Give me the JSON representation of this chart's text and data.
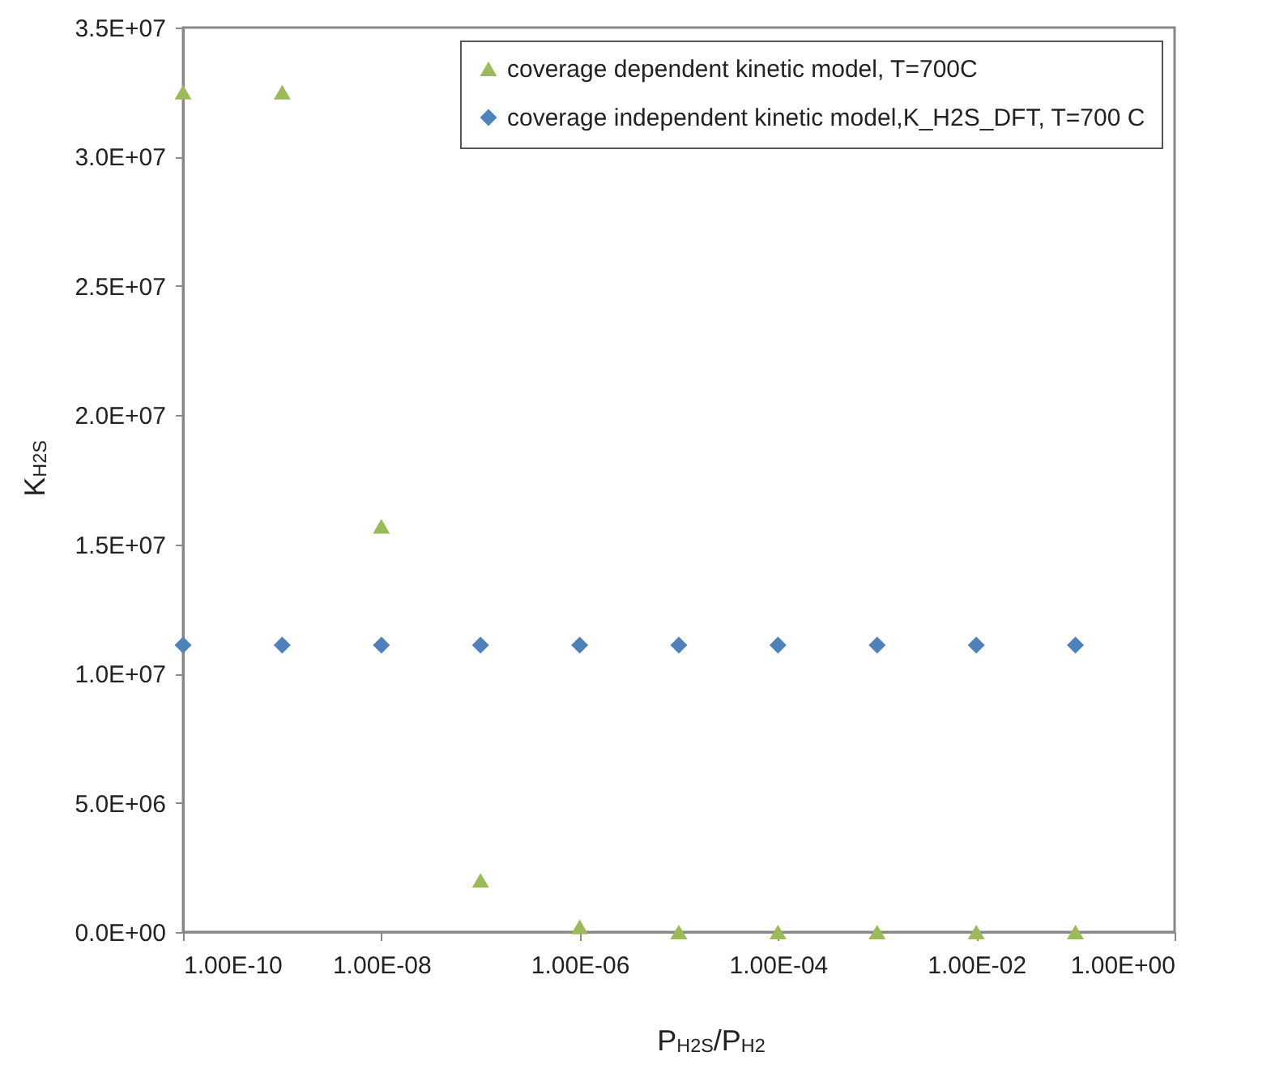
{
  "chart_data": {
    "type": "scatter",
    "xlabel": "P$_{H2S}$/P$_{H2}$",
    "ylabel": "K$_{H2S}$",
    "log": "x",
    "grid": false,
    "legend": "top right",
    "x": [
      1e-10,
      1e-09,
      1e-08,
      1e-07,
      1e-06,
      1e-05,
      0.0001,
      0.001,
      0.01,
      0.1
    ],
    "xlim": [
      1e-10,
      1
    ],
    "ylim": [
      0,
      35000000
    ],
    "xticks": [
      {
        "value": 1e-10,
        "label": "1.00E-10"
      },
      {
        "value": 1e-08,
        "label": "1.00E-08"
      },
      {
        "value": 1e-06,
        "label": "1.00E-06"
      },
      {
        "value": 0.0001,
        "label": "1.00E-04"
      },
      {
        "value": 0.01,
        "label": "1.00E-02"
      },
      {
        "value": 1,
        "label": "1.00E+00"
      }
    ],
    "yticks": [
      {
        "value": 0,
        "label": "0.0E+00"
      },
      {
        "value": 5000000,
        "label": "5.0E+06"
      },
      {
        "value": 10000000,
        "label": "1.0E+07"
      },
      {
        "value": 15000000,
        "label": "1.5E+07"
      },
      {
        "value": 20000000,
        "label": "2.0E+07"
      },
      {
        "value": 25000000,
        "label": "2.5E+07"
      },
      {
        "value": 30000000,
        "label": "3.0E+07"
      },
      {
        "value": 35000000,
        "label": "3.5E+07"
      }
    ],
    "series": [
      {
        "name": "coverage dependent kinetic model, T=700C",
        "color": "#9bbb59",
        "marker": "triangle",
        "values": [
          32500000,
          32500000,
          15700000,
          2000000,
          200000,
          0,
          0,
          0,
          0,
          0
        ]
      },
      {
        "name": "coverage independent kinetic model,K_H2S_DFT, T=700 C",
        "color": "#4f81bd",
        "marker": "diamond",
        "values": [
          11100000,
          11100000,
          11100000,
          11100000,
          11100000,
          11100000,
          11100000,
          11100000,
          11100000,
          11100000
        ]
      }
    ]
  }
}
